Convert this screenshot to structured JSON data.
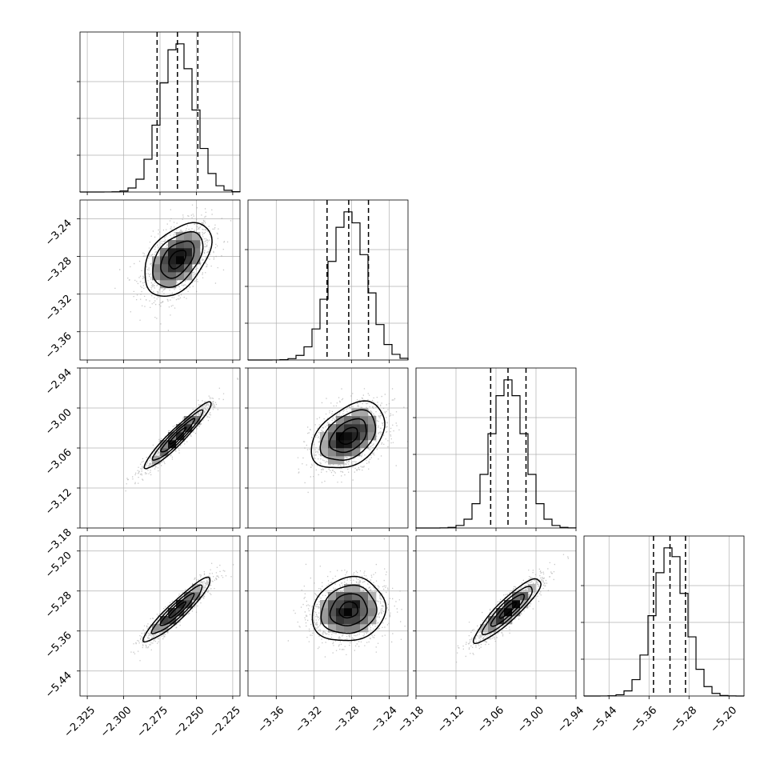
{
  "chart_data": {
    "type": "corner",
    "parameters": [
      {
        "range": [
          -2.33,
          -2.22
        ],
        "ticks": [
          "−2.325",
          "−2.300",
          "−2.275",
          "−2.250",
          "−2.225"
        ],
        "tick_values": [
          -2.325,
          -2.3,
          -2.275,
          -2.25,
          -2.225
        ],
        "median": -2.263,
        "q16": -2.277,
        "q84": -2.249,
        "sigma": 0.0115
      },
      {
        "range": [
          -3.39,
          -3.22
        ],
        "ticks": [
          "−3.36",
          "−3.32",
          "−3.28",
          "−3.24"
        ],
        "tick_values": [
          -3.36,
          -3.32,
          -3.28,
          -3.24
        ],
        "median": -3.283,
        "q16": -3.306,
        "q84": -3.262,
        "sigma": 0.0195
      },
      {
        "range": [
          -3.18,
          -2.94
        ],
        "ticks": [
          "−3.18",
          "−3.12",
          "−3.06",
          "−3.00",
          "−2.94"
        ],
        "tick_values": [
          -3.18,
          -3.12,
          -3.06,
          -3.0,
          -2.94
        ],
        "median": -3.042,
        "q16": -3.068,
        "q84": -3.015,
        "sigma": 0.025
      },
      {
        "range": [
          -5.49,
          -5.17
        ],
        "ticks": [
          "−5.44",
          "−5.36",
          "−5.28",
          "−5.20"
        ],
        "tick_values": [
          -5.44,
          -5.36,
          -5.28,
          -5.2
        ],
        "median": -5.318,
        "q16": -5.351,
        "q84": -5.287,
        "sigma": 0.032
      }
    ],
    "y_tick_label_rows": [
      {
        "row": 1,
        "ticks": [
          "−3.24",
          "−3.28",
          "−3.32",
          "−3.36"
        ],
        "tick_values": [
          -3.24,
          -3.28,
          -3.32,
          -3.36
        ]
      },
      {
        "row": 2,
        "ticks": [
          "−2.94",
          "−3.00",
          "−3.06",
          "−3.12",
          "−3.18"
        ],
        "tick_values": [
          -2.94,
          -3.0,
          -3.06,
          -3.12,
          -3.18
        ]
      },
      {
        "row": 3,
        "ticks": [
          "−5.20",
          "−5.28",
          "−5.36",
          "−5.44"
        ],
        "tick_values": [
          -5.2,
          -5.28,
          -5.36,
          -5.44
        ]
      }
    ],
    "correlations": [
      {
        "row": 1,
        "col": 0,
        "rho": 0.45
      },
      {
        "row": 2,
        "col": 0,
        "rho": 0.95
      },
      {
        "row": 2,
        "col": 1,
        "rho": 0.4
      },
      {
        "row": 3,
        "col": 0,
        "rho": 0.93
      },
      {
        "row": 3,
        "col": 1,
        "rho": 0.12
      },
      {
        "row": 3,
        "col": 2,
        "rho": 0.9
      }
    ],
    "histogram_bins": 20,
    "contour_levels_sigma": [
      0.5,
      1.0,
      1.5,
      2.0
    ],
    "grid": true,
    "colors": {
      "points": "#9a9a9a",
      "lines": "#000000",
      "grid": "#b0b0b0"
    }
  }
}
